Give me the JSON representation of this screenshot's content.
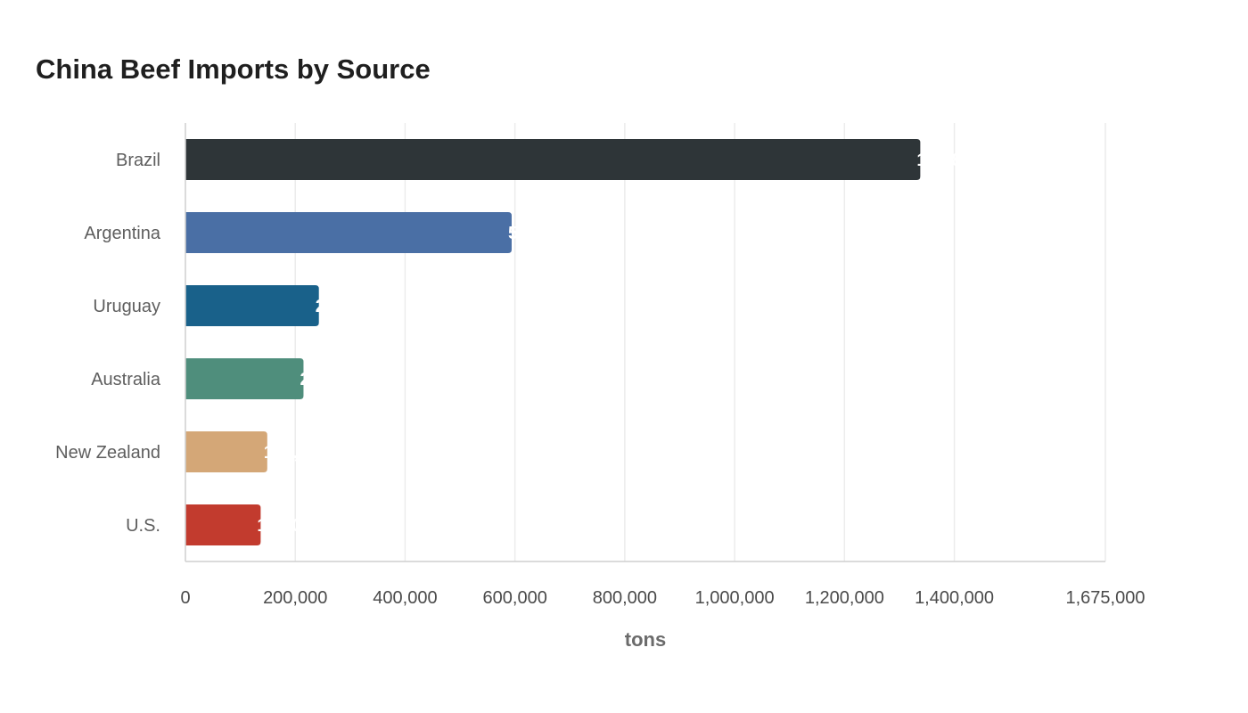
{
  "chart_data": {
    "type": "bar",
    "orientation": "horizontal",
    "title": "China Beef Imports by Source",
    "xlabel": "tons",
    "ylabel": "",
    "categories": [
      "Brazil",
      "Argentina",
      "Uruguay",
      "Australia",
      "New Zealand",
      "U.S."
    ],
    "values": [
      1338000,
      594000,
      243000,
      215000,
      149000,
      137000
    ],
    "colors": [
      "#2e3538",
      "#4a6fa5",
      "#19618a",
      "#4f8e7c",
      "#d4a777",
      "#c23b2e"
    ],
    "xlim": [
      0,
      1675000
    ],
    "xticks": [
      0,
      200000,
      400000,
      600000,
      800000,
      1000000,
      1200000,
      1400000,
      1675000
    ],
    "xtick_labels": [
      "0",
      "200,000",
      "400,000",
      "600,000",
      "800,000",
      "1,000,000",
      "1,200,000",
      "1,400,000",
      "1,675,000"
    ],
    "grid": true,
    "legend": "none"
  }
}
